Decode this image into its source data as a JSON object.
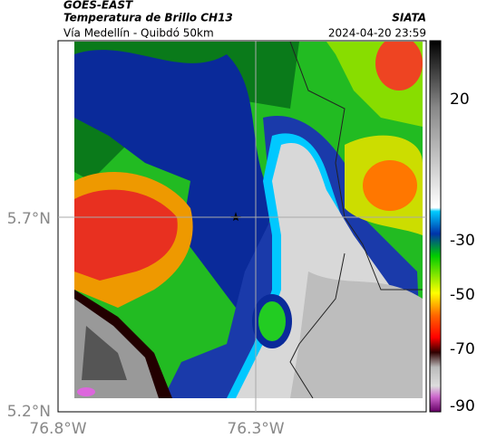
{
  "header": {
    "source": "GOES-EAST",
    "title": "Temperatura de Brillo CH13",
    "subtitle": "Vía Medellín - Quibdó 50km",
    "agency": "SIATA",
    "datetime": "2024-04-20 23:59"
  },
  "axes": {
    "y_labels": [
      "5.7°N",
      "5.2°N"
    ],
    "x_labels": [
      "76.8°W",
      "76.3°W"
    ]
  },
  "colorbar": {
    "labels": [
      "20",
      "-30",
      "-50",
      "-70",
      "-90"
    ]
  }
}
